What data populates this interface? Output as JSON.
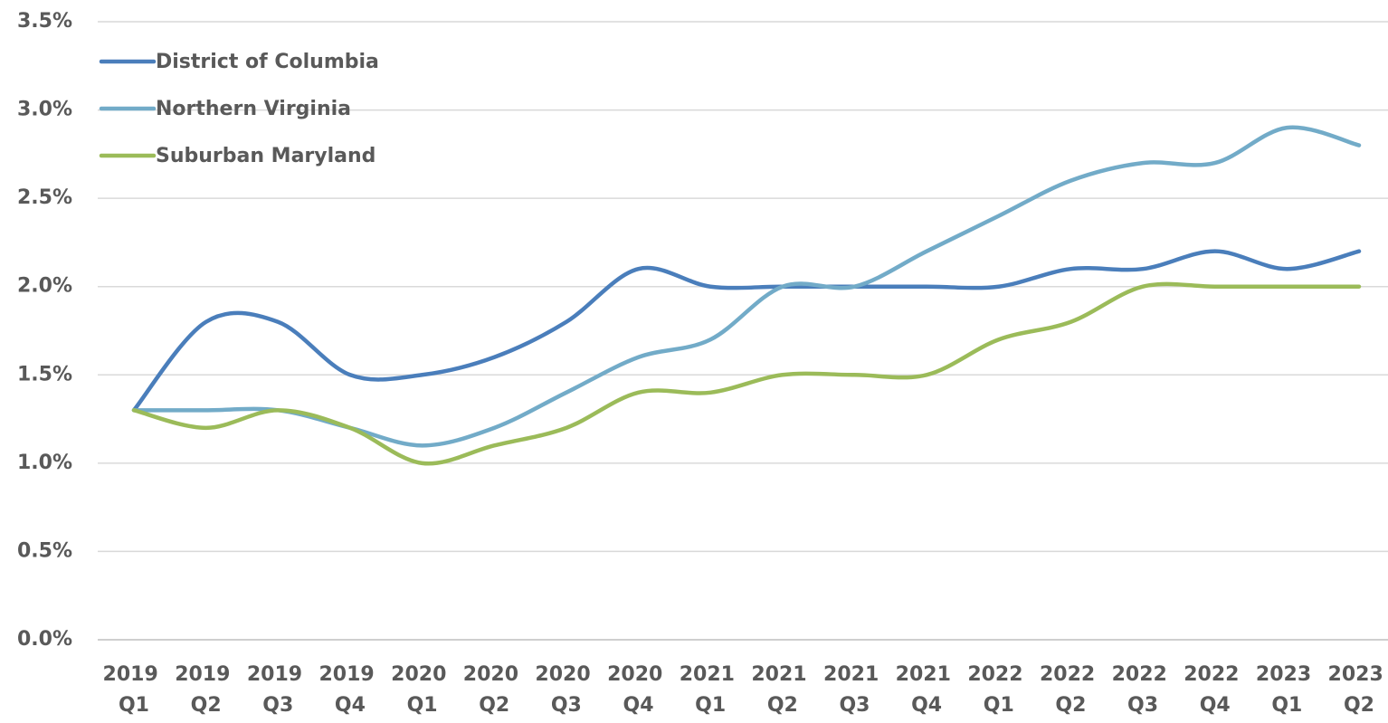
{
  "chart_data": {
    "type": "line",
    "categories": [
      "2019 Q1",
      "2019 Q2",
      "2019 Q3",
      "2019 Q4",
      "2020 Q1",
      "2020 Q2",
      "2020 Q3",
      "2020 Q4",
      "2021 Q1",
      "2021 Q2",
      "2021 Q3",
      "2021 Q4",
      "2022 Q1",
      "2022 Q2",
      "2022 Q3",
      "2022 Q4",
      "2023 Q1",
      "2023 Q2"
    ],
    "series": [
      {
        "name": "District of Columbia",
        "color": "#4a7ebb",
        "values": [
          1.3,
          1.8,
          1.8,
          1.5,
          1.5,
          1.6,
          1.8,
          2.1,
          2.0,
          2.0,
          2.0,
          2.0,
          2.0,
          2.1,
          2.1,
          2.2,
          2.1,
          2.2
        ]
      },
      {
        "name": "Northern Virginia",
        "color": "#72abc8",
        "values": [
          1.3,
          1.3,
          1.3,
          1.2,
          1.1,
          1.2,
          1.4,
          1.6,
          1.7,
          2.0,
          2.0,
          2.2,
          2.4,
          2.6,
          2.7,
          2.7,
          2.9,
          2.8
        ]
      },
      {
        "name": "Suburban Maryland",
        "color": "#9bbb59",
        "values": [
          1.3,
          1.2,
          1.3,
          1.2,
          1.0,
          1.1,
          1.2,
          1.4,
          1.4,
          1.5,
          1.5,
          1.5,
          1.7,
          1.8,
          2.0,
          2.0,
          2.0,
          2.0
        ]
      }
    ],
    "ylim": [
      0,
      3.5
    ],
    "yticks": [
      {
        "value": 0,
        "label": "0.0%"
      },
      {
        "value": 0.5,
        "label": "0.5%"
      },
      {
        "value": 1,
        "label": "1.0%"
      },
      {
        "value": 1.5,
        "label": "1.5%"
      },
      {
        "value": 2,
        "label": "2.0%"
      },
      {
        "value": 2.5,
        "label": "2.5%"
      },
      {
        "value": 3,
        "label": "3.0%"
      },
      {
        "value": 3.5,
        "label": "3.5%"
      }
    ],
    "grid": true,
    "smooth": true,
    "legend": "upper left"
  }
}
